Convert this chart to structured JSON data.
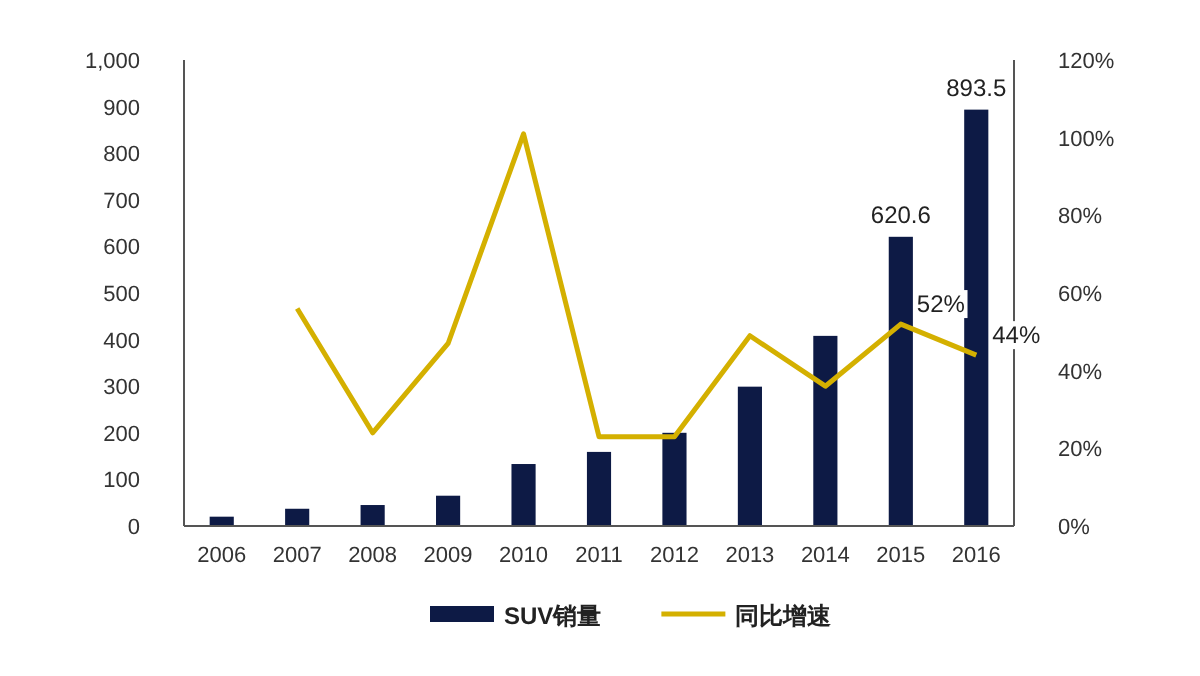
{
  "chart_data": {
    "type": "bar",
    "categories": [
      "2006",
      "2007",
      "2008",
      "2009",
      "2010",
      "2011",
      "2012",
      "2013",
      "2014",
      "2015",
      "2016"
    ],
    "series": [
      {
        "name": "SUV销量",
        "color": "#0d1a45",
        "values": [
          20,
          37,
          45,
          65,
          133,
          159,
          200,
          299,
          408,
          620.6,
          893.5
        ],
        "value_labels": [
          null,
          null,
          null,
          null,
          null,
          null,
          null,
          null,
          null,
          "620.6",
          "893.5"
        ]
      },
      {
        "name": "同比增速",
        "type": "line",
        "axis": "y2",
        "color": "#d4b000",
        "values": [
          null,
          56,
          24,
          47,
          101,
          23,
          23,
          49,
          36,
          52,
          44
        ],
        "value_labels": [
          null,
          null,
          null,
          null,
          null,
          null,
          null,
          null,
          null,
          "52%",
          "44%"
        ]
      }
    ],
    "ylim": [
      0,
      1000
    ],
    "yticks": [
      0,
      100,
      200,
      300,
      400,
      500,
      600,
      700,
      800,
      900,
      {
        "value": 1000,
        "label": "1,000"
      }
    ],
    "y2lim": [
      0,
      120
    ],
    "y2ticks": [
      {
        "value": 0,
        "label": "0%"
      },
      {
        "value": 20,
        "label": "20%"
      },
      {
        "value": 40,
        "label": "40%"
      },
      {
        "value": 60,
        "label": "60%"
      },
      {
        "value": 80,
        "label": "80%"
      },
      {
        "value": 100,
        "label": "100%"
      },
      {
        "value": 120,
        "label": "120%"
      }
    ],
    "legend": "bottom",
    "marker": "none",
    "line_style": "solid"
  }
}
